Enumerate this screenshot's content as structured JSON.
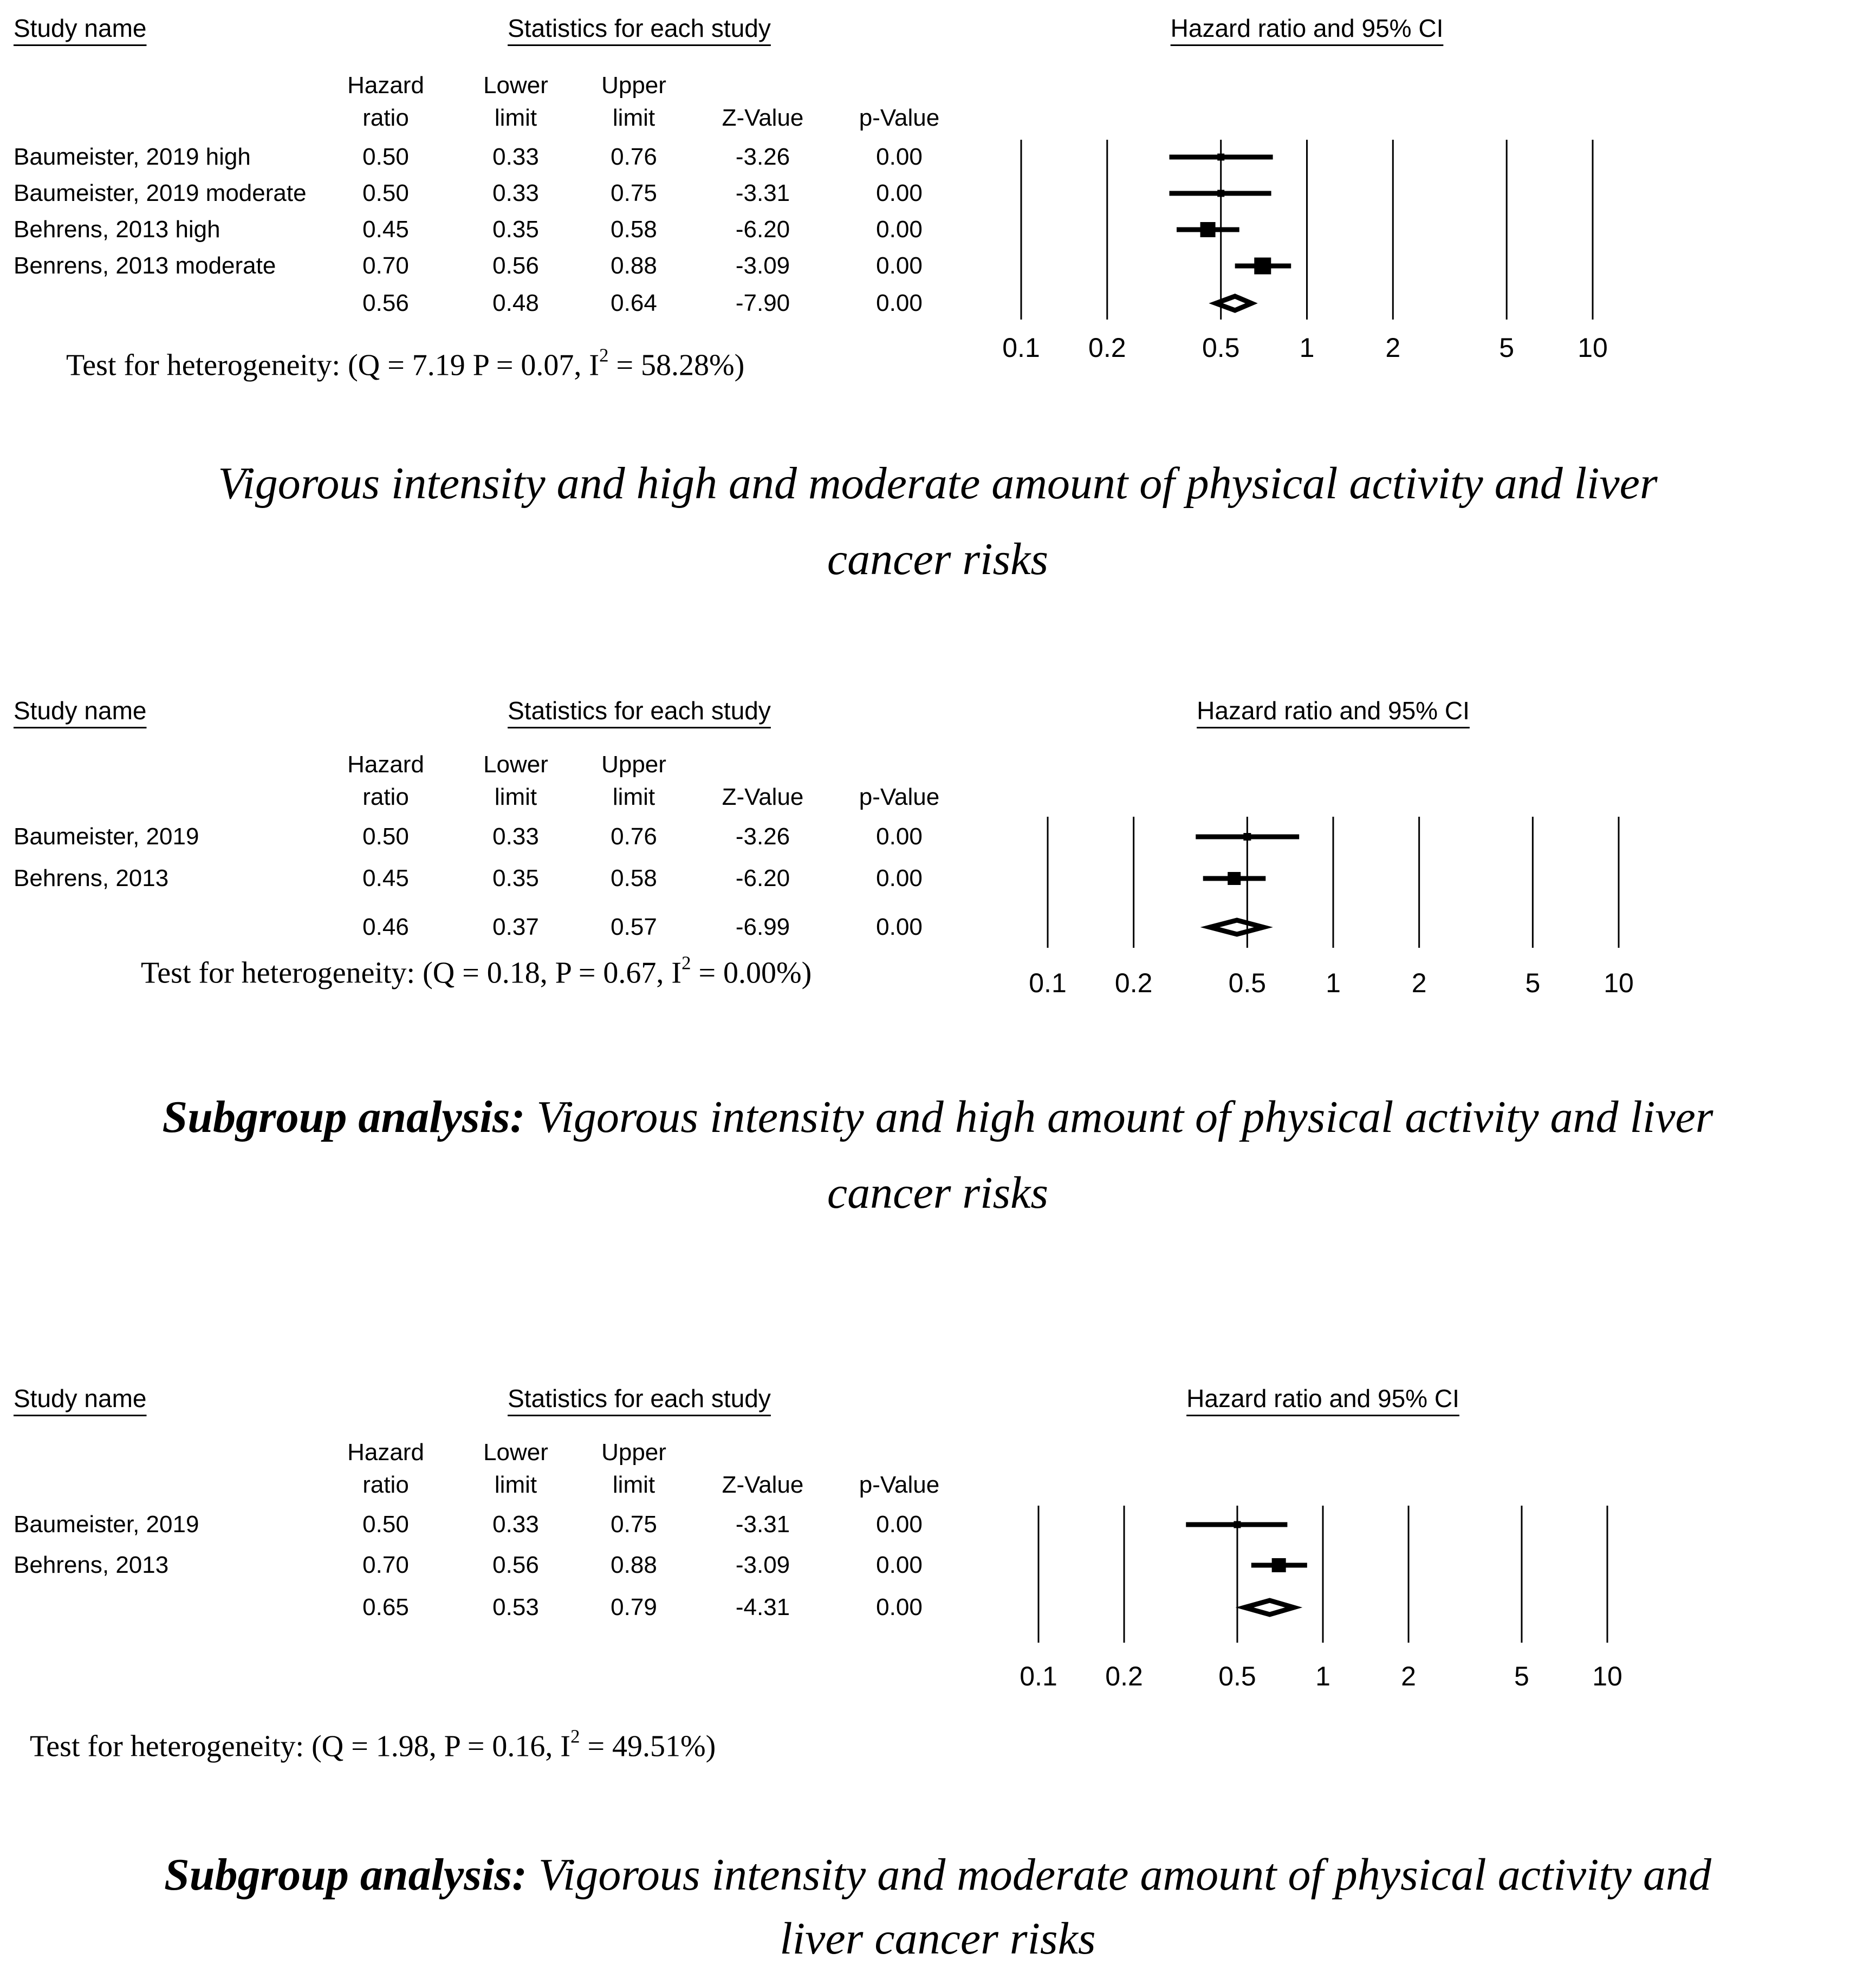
{
  "colors": {
    "foreground": "#000000",
    "background": "#ffffff"
  },
  "labels": {
    "study_name_header": "Study name",
    "stats_header": "Statistics for each study",
    "plot_header": "Hazard ratio and 95% CI",
    "col_headers": [
      [
        "Hazard",
        "ratio"
      ],
      [
        "Lower",
        "limit"
      ],
      [
        "Upper",
        "limit"
      ],
      [
        "Z-Value"
      ],
      [
        "p-Value"
      ]
    ]
  },
  "axis": {
    "scale": "log",
    "min": 0.1,
    "max": 10,
    "tick_values": [
      0.1,
      0.2,
      0.5,
      1,
      2,
      5,
      10
    ],
    "tick_labels": [
      "0.1",
      "0.2",
      "0.5",
      "1",
      "2",
      "5",
      "10"
    ]
  },
  "panels": [
    {
      "rows": [
        {
          "study": "Baumeister, 2019 high",
          "cells": [
            "0.50",
            "0.33",
            "0.76",
            "-3.26",
            "0.00"
          ],
          "marker_size": 13
        },
        {
          "study": "Baumeister, 2019 moderate",
          "cells": [
            "0.50",
            "0.33",
            "0.75",
            "-3.31",
            "0.00"
          ],
          "marker_size": 13
        },
        {
          "study": "Behrens, 2013 high",
          "cells": [
            "0.45",
            "0.35",
            "0.58",
            "-6.20",
            "0.00"
          ],
          "marker_size": 28
        },
        {
          "study": "Benrens, 2013 moderate",
          "cells": [
            "0.70",
            "0.56",
            "0.88",
            "-3.09",
            "0.00"
          ],
          "marker_size": 31
        }
      ],
      "pooled": {
        "cells": [
          "0.56",
          "0.48",
          "0.64",
          "-7.90",
          "0.00"
        ]
      },
      "heterogeneity": {
        "pre": "Test for heterogeneity: (Q = 7.19 P = 0.07, I",
        "sup": "2",
        "post": " = 58.28%)"
      },
      "caption": {
        "prefix": "",
        "lines": [
          "Vigorous intensity and high and moderate amount of physical activity and liver",
          "cancer risks"
        ]
      }
    },
    {
      "rows": [
        {
          "study": "Baumeister, 2019",
          "cells": [
            "0.50",
            "0.33",
            "0.76",
            "-3.26",
            "0.00"
          ],
          "marker_size": 14
        },
        {
          "study": "Behrens, 2013",
          "cells": [
            "0.45",
            "0.35",
            "0.58",
            "-6.20",
            "0.00"
          ],
          "marker_size": 24
        }
      ],
      "pooled": {
        "cells": [
          "0.46",
          "0.37",
          "0.57",
          "-6.99",
          "0.00"
        ]
      },
      "heterogeneity": {
        "pre": "Test for heterogeneity: (Q = 0.18, P = 0.67, I",
        "sup": "2",
        "post": " = 0.00%)"
      },
      "caption": {
        "prefix": "Subgroup analysis:",
        "lines": [
          "Vigorous intensity and high amount of physical activity and liver",
          "cancer risks"
        ]
      }
    },
    {
      "rows": [
        {
          "study": "Baumeister, 2019",
          "cells": [
            "0.50",
            "0.33",
            "0.75",
            "-3.31",
            "0.00"
          ],
          "marker_size": 13
        },
        {
          "study": "Behrens, 2013",
          "cells": [
            "0.70",
            "0.56",
            "0.88",
            "-3.09",
            "0.00"
          ],
          "marker_size": 26
        }
      ],
      "pooled": {
        "cells": [
          "0.65",
          "0.53",
          "0.79",
          "-4.31",
          "0.00"
        ]
      },
      "heterogeneity": {
        "pre": "Test for heterogeneity: (Q = 1.98, P = 0.16, I",
        "sup": "2",
        "post": " = 49.51%)"
      },
      "caption": {
        "prefix": "Subgroup analysis:",
        "lines": [
          "Vigorous intensity and moderate amount of physical activity and",
          "liver cancer risks"
        ]
      }
    }
  ],
  "chart_data": [
    {
      "type": "forest",
      "title": "Hazard ratio and 95% CI",
      "x_scale": "log",
      "x_ticks": [
        0.1,
        0.2,
        0.5,
        1,
        2,
        5,
        10
      ],
      "xlim": [
        0.1,
        10
      ],
      "grid": true,
      "studies": [
        {
          "name": "Baumeister, 2019 high",
          "hr": 0.5,
          "ci_low": 0.33,
          "ci_high": 0.76,
          "z": -3.26,
          "p": 0.0
        },
        {
          "name": "Baumeister, 2019 moderate",
          "hr": 0.5,
          "ci_low": 0.33,
          "ci_high": 0.75,
          "z": -3.31,
          "p": 0.0
        },
        {
          "name": "Behrens, 2013 high",
          "hr": 0.45,
          "ci_low": 0.35,
          "ci_high": 0.58,
          "z": -6.2,
          "p": 0.0
        },
        {
          "name": "Benrens, 2013 moderate",
          "hr": 0.7,
          "ci_low": 0.56,
          "ci_high": 0.88,
          "z": -3.09,
          "p": 0.0
        }
      ],
      "pooled": {
        "hr": 0.56,
        "ci_low": 0.48,
        "ci_high": 0.64,
        "z": -7.9,
        "p": 0.0
      },
      "heterogeneity": {
        "Q": 7.19,
        "P": 0.07,
        "I2_pct": 58.28
      },
      "caption": "Vigorous intensity and high and moderate amount of physical activity and liver cancer risks"
    },
    {
      "type": "forest",
      "title": "Hazard ratio and 95% CI",
      "x_scale": "log",
      "x_ticks": [
        0.1,
        0.2,
        0.5,
        1,
        2,
        5,
        10
      ],
      "xlim": [
        0.1,
        10
      ],
      "grid": true,
      "studies": [
        {
          "name": "Baumeister, 2019",
          "hr": 0.5,
          "ci_low": 0.33,
          "ci_high": 0.76,
          "z": -3.26,
          "p": 0.0
        },
        {
          "name": "Behrens, 2013",
          "hr": 0.45,
          "ci_low": 0.35,
          "ci_high": 0.58,
          "z": -6.2,
          "p": 0.0
        }
      ],
      "pooled": {
        "hr": 0.46,
        "ci_low": 0.37,
        "ci_high": 0.57,
        "z": -6.99,
        "p": 0.0
      },
      "heterogeneity": {
        "Q": 0.18,
        "P": 0.67,
        "I2_pct": 0.0
      },
      "caption": "Subgroup analysis: Vigorous intensity and high amount of physical activity and liver cancer risks"
    },
    {
      "type": "forest",
      "title": "Hazard ratio and 95% CI",
      "x_scale": "log",
      "x_ticks": [
        0.1,
        0.2,
        0.5,
        1,
        2,
        5,
        10
      ],
      "xlim": [
        0.1,
        10
      ],
      "grid": true,
      "studies": [
        {
          "name": "Baumeister, 2019",
          "hr": 0.5,
          "ci_low": 0.33,
          "ci_high": 0.75,
          "z": -3.31,
          "p": 0.0
        },
        {
          "name": "Behrens, 2013",
          "hr": 0.7,
          "ci_low": 0.56,
          "ci_high": 0.88,
          "z": -3.09,
          "p": 0.0
        }
      ],
      "pooled": {
        "hr": 0.65,
        "ci_low": 0.53,
        "ci_high": 0.79,
        "z": -4.31,
        "p": 0.0
      },
      "heterogeneity": {
        "Q": 1.98,
        "P": 0.16,
        "I2_pct": 49.51
      },
      "caption": "Subgroup analysis: Vigorous intensity and moderate amount of physical activity and liver cancer risks"
    }
  ]
}
